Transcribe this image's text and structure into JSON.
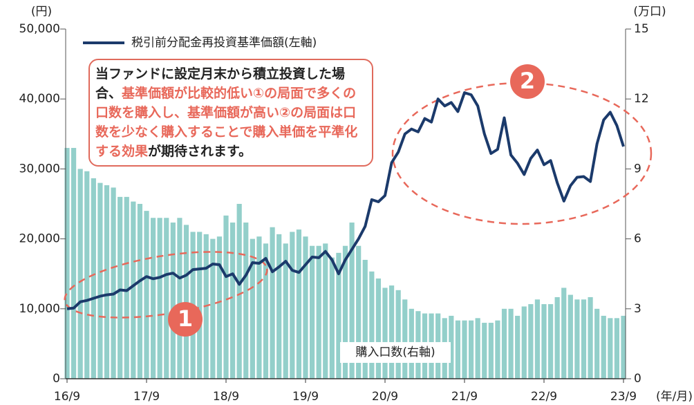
{
  "chart_data": {
    "type": "bar-line",
    "y_unit": "(円)",
    "y2_unit": "(万口)",
    "x_unit": "(年/月)",
    "categories": [
      "16/9",
      null,
      null,
      null,
      null,
      null,
      null,
      null,
      null,
      null,
      null,
      null,
      "17/9",
      null,
      null,
      null,
      null,
      null,
      null,
      null,
      null,
      null,
      null,
      null,
      "18/9",
      null,
      null,
      null,
      null,
      null,
      null,
      null,
      null,
      null,
      null,
      null,
      "19/9",
      null,
      null,
      null,
      null,
      null,
      null,
      null,
      null,
      null,
      null,
      null,
      "20/9",
      null,
      null,
      null,
      null,
      null,
      null,
      null,
      null,
      null,
      null,
      null,
      "21/9",
      null,
      null,
      null,
      null,
      null,
      null,
      null,
      null,
      null,
      null,
      null,
      "22/9",
      null,
      null,
      null,
      null,
      null,
      null,
      null,
      null,
      null,
      null,
      null,
      "23/9"
    ],
    "series": [
      {
        "name": "税引前分配金再投資基準価額(左軸)",
        "type": "line",
        "color": "#1b3a6b",
        "values": [
          10000,
          10100,
          11000,
          11200,
          11500,
          11800,
          12000,
          12100,
          12700,
          12600,
          13300,
          14000,
          14600,
          14300,
          14500,
          14900,
          15100,
          14400,
          14800,
          15600,
          15700,
          15800,
          16400,
          16300,
          14600,
          15000,
          13500,
          14800,
          16600,
          16500,
          17200,
          15300,
          16000,
          16800,
          15500,
          15200,
          16300,
          17400,
          17300,
          18200,
          17000,
          15000,
          17000,
          18500,
          20000,
          21800,
          25600,
          25300,
          26200,
          30900,
          32400,
          35000,
          35700,
          35300,
          37200,
          36700,
          40000,
          39000,
          39500,
          38200,
          40900,
          40600,
          39000,
          35000,
          32200,
          32800,
          37300,
          32000,
          30800,
          29200,
          31500,
          32700,
          30600,
          31200,
          28000,
          25400,
          27600,
          28800,
          28900,
          28200,
          33600,
          37000,
          38100,
          36200,
          33200
        ]
      },
      {
        "name": "購入口数(右軸)",
        "type": "bar",
        "axis": "y2",
        "color": "#93cfca",
        "values": [
          9.9,
          9.9,
          9.0,
          8.9,
          8.6,
          8.4,
          8.3,
          8.2,
          7.8,
          7.8,
          7.6,
          7.5,
          7.2,
          6.9,
          6.9,
          6.9,
          6.7,
          6.9,
          6.6,
          6.3,
          6.3,
          6.2,
          6.0,
          6.1,
          7.0,
          6.7,
          7.5,
          6.7,
          6.0,
          6.1,
          5.8,
          6.5,
          6.2,
          5.8,
          6.3,
          6.4,
          6.1,
          5.7,
          5.7,
          5.8,
          5.2,
          5.4,
          5.7,
          6.7,
          5.7,
          5.1,
          4.6,
          4.3,
          3.9,
          4.0,
          3.8,
          3.4,
          3.0,
          2.9,
          2.8,
          2.8,
          2.8,
          2.6,
          2.7,
          2.5,
          2.5,
          2.5,
          2.6,
          2.4,
          2.4,
          2.5,
          3.0,
          3.0,
          2.7,
          3.1,
          3.2,
          3.4,
          3.2,
          3.2,
          3.5,
          3.9,
          3.6,
          3.4,
          3.4,
          3.5,
          3.0,
          2.7,
          2.6,
          2.6,
          2.7
        ]
      }
    ],
    "ylim": [
      0,
      50000
    ],
    "yticks": [
      0,
      {
        "value": 10000,
        "label": "10,000"
      },
      {
        "value": 20000,
        "label": "20,000"
      },
      {
        "value": 30000,
        "label": "30,000"
      },
      {
        "value": 40000,
        "label": "40,000"
      },
      {
        "value": 50000,
        "label": "50,000"
      }
    ],
    "y2lim": [
      0,
      15
    ],
    "y2ticks": [
      0,
      3,
      6,
      9,
      12,
      15
    ],
    "grid": false,
    "callout": [
      "当ファンドに設定月末から積立投資した場合、",
      "基準価額が比較的低い①の局面で多くの口数を購入し、基準価額が高い②の局面は口数を少なく購入することで購入単価を平準化する効果",
      "が期待されます。"
    ],
    "annotations": [
      {
        "text": "1"
      },
      {
        "text": "2"
      }
    ]
  }
}
